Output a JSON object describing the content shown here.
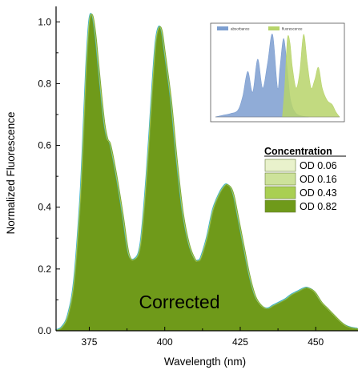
{
  "chart_data": {
    "type": "area",
    "title": "",
    "xlabel": "Wavelength (nm)",
    "ylabel": "Normalized Fluorescence",
    "xlim": [
      364,
      464
    ],
    "ylim": [
      0,
      1.05
    ],
    "x_ticks": [
      375,
      400,
      425,
      450
    ],
    "y_ticks": [
      0.0,
      0.2,
      0.4,
      0.6,
      0.8,
      1.0
    ],
    "x_tick_labels": [
      "375",
      "400",
      "425",
      "450"
    ],
    "y_tick_labels": [
      "0.0",
      "0.2",
      "0.4",
      "0.6",
      "0.8",
      "1.0"
    ],
    "annotation": "Corrected",
    "legend": {
      "title": "Concentration",
      "position": "right",
      "entries": [
        {
          "label": "OD 0.06",
          "color": "#e9f2cc"
        },
        {
          "label": "OD 0.16",
          "color": "#cde29a"
        },
        {
          "label": "OD 0.43",
          "color": "#a9cf52"
        },
        {
          "label": "OD 0.82",
          "color": "#6f9a1a"
        }
      ]
    },
    "fill_color": "#6f9a1a",
    "outline_colors": [
      "#3fb2c8",
      "#c8d84e",
      "#7aa83a"
    ],
    "series": [
      {
        "name": "OD 0.82",
        "x": [
          364,
          366,
          368,
          370,
          372,
          373,
          374,
          375,
          376,
          377,
          378,
          379,
          380,
          381,
          382,
          384,
          386,
          388,
          390,
          392,
          394,
          396,
          397,
          398,
          399,
          400,
          402,
          404,
          406,
          408,
          410,
          411,
          412,
          414,
          416,
          418,
          420,
          421,
          422,
          423,
          424,
          426,
          428,
          430,
          432,
          434,
          436,
          438,
          440,
          442,
          444,
          446,
          447,
          448,
          449,
          450,
          452,
          454,
          456,
          458,
          460,
          462,
          464
        ],
        "y": [
          0.0,
          0.01,
          0.05,
          0.16,
          0.42,
          0.62,
          0.85,
          1.0,
          1.02,
          0.96,
          0.86,
          0.76,
          0.67,
          0.62,
          0.6,
          0.5,
          0.38,
          0.25,
          0.23,
          0.28,
          0.5,
          0.8,
          0.93,
          0.98,
          0.97,
          0.9,
          0.75,
          0.55,
          0.38,
          0.28,
          0.23,
          0.225,
          0.235,
          0.3,
          0.39,
          0.44,
          0.47,
          0.47,
          0.46,
          0.43,
          0.38,
          0.28,
          0.18,
          0.11,
          0.08,
          0.07,
          0.08,
          0.09,
          0.1,
          0.115,
          0.125,
          0.135,
          0.138,
          0.135,
          0.13,
          0.12,
          0.09,
          0.07,
          0.05,
          0.03,
          0.015,
          0.008,
          0.005
        ]
      }
    ],
    "inset": {
      "type": "area",
      "legend": [
        "absorbance",
        "fluorescence"
      ],
      "series": [
        {
          "name": "absorbance",
          "color": "#7c9ed0",
          "x": [
            0.0,
            0.06,
            0.12,
            0.18,
            0.22,
            0.26,
            0.3,
            0.34,
            0.38,
            0.42,
            0.46,
            0.5,
            0.52,
            0.55,
            0.58,
            0.6,
            0.62,
            0.64,
            0.66,
            0.7,
            0.75
          ],
          "y": [
            0.0,
            0.02,
            0.04,
            0.08,
            0.25,
            0.55,
            0.3,
            0.7,
            0.35,
            0.65,
            1.0,
            0.35,
            0.6,
            0.95,
            0.55,
            0.25,
            0.12,
            0.06,
            0.03,
            0.01,
            0.0
          ]
        },
        {
          "name": "fluorescence",
          "color": "#b7d46a",
          "x": [
            0.54,
            0.56,
            0.58,
            0.6,
            0.62,
            0.65,
            0.68,
            0.71,
            0.74,
            0.77,
            0.8,
            0.83,
            0.86,
            0.9,
            0.94,
            0.97,
            1.0
          ],
          "y": [
            0.0,
            0.4,
            0.95,
            0.9,
            0.6,
            0.35,
            0.55,
            1.0,
            0.65,
            0.35,
            0.45,
            0.6,
            0.35,
            0.2,
            0.15,
            0.06,
            0.0
          ]
        }
      ]
    }
  }
}
